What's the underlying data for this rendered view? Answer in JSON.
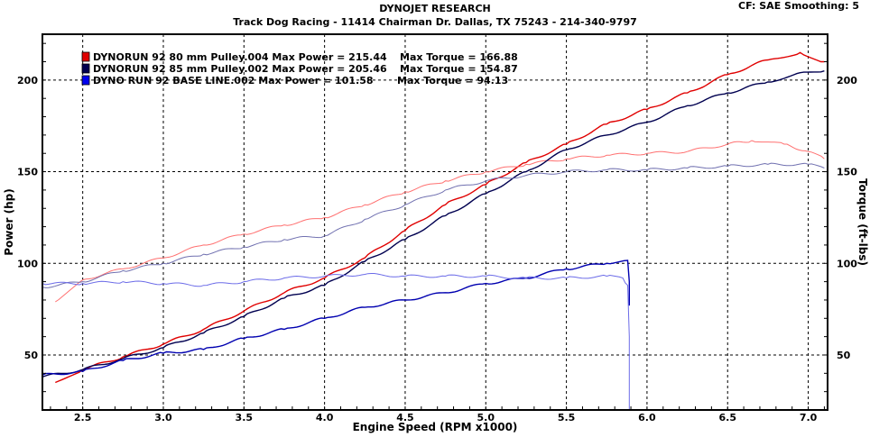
{
  "header": {
    "title": "DYNOJET RESEARCH",
    "subtitle": "Track Dog Racing - 11414 Chairman Dr. Dallas, TX 75243 - 214-340-9797",
    "cf": "CF: SAE  Smoothing: 5"
  },
  "chart_data": {
    "type": "line",
    "xlabel": "Engine Speed (RPM x1000)",
    "ylabel": "Power (hp)",
    "ylabel_right": "Torque (ft-lbs)",
    "xlim": [
      2.25,
      7.12
    ],
    "ylim": [
      20,
      225
    ],
    "xticks": [
      "2.5",
      "3.0",
      "3.5",
      "4.0",
      "4.5",
      "5.0",
      "5.5",
      "6.0",
      "6.5",
      "7.0"
    ],
    "xtick_values": [
      2.5,
      3.0,
      3.5,
      4.0,
      4.5,
      5.0,
      5.5,
      6.0,
      6.5,
      7.0
    ],
    "yticks": [
      "50",
      "100",
      "150",
      "200"
    ],
    "ytick_values": [
      50,
      100,
      150,
      200
    ],
    "grid": true,
    "legend_position": "top-left",
    "legend": [
      {
        "label": "DYNORUN 92 80 mm Pulley.004 Max Power = 215.44",
        "torque_label": "Max Torque = 166.88",
        "color": "#e00000"
      },
      {
        "label": "DYNORUN 92 85 mm Pulley.002 Max Power = 205.46",
        "torque_label": "Max Torque = 154.87",
        "color": "#000050"
      },
      {
        "label": "DYNO RUN 92 BASE LINE.002 Max Power = 101.58",
        "torque_label": "Max Torque = 94.13",
        "color": "#0000ee"
      }
    ],
    "series": [
      {
        "name": "DYNORUN 92 80 mm Pulley.004",
        "kind": "power",
        "color": "#e00000",
        "x": [
          2.33,
          2.5,
          2.75,
          3.0,
          3.25,
          3.5,
          3.75,
          4.0,
          4.25,
          4.5,
          4.75,
          5.0,
          5.25,
          5.5,
          5.75,
          6.0,
          6.25,
          6.5,
          6.75,
          6.95,
          7.1
        ],
        "y": [
          35,
          42,
          49,
          56,
          64,
          74,
          84,
          92,
          103,
          118,
          132,
          143,
          155,
          165,
          176,
          184,
          193,
          203,
          211,
          215,
          210
        ]
      },
      {
        "name": "DYNORUN 92 80 mm Pulley.004",
        "kind": "torque",
        "color": "#ff7070",
        "x": [
          2.33,
          2.5,
          2.75,
          3.0,
          3.25,
          3.5,
          3.75,
          4.0,
          4.25,
          4.5,
          4.75,
          5.0,
          5.25,
          5.5,
          5.75,
          6.0,
          6.25,
          6.5,
          6.65,
          6.85,
          7.0,
          7.1
        ],
        "y": [
          79,
          91,
          97,
          103,
          110,
          116,
          121,
          125,
          132,
          139,
          145,
          150,
          154,
          157,
          159,
          160,
          161,
          165,
          167,
          165,
          161,
          157
        ]
      },
      {
        "name": "DYNORUN 92 85 mm Pulley.002",
        "kind": "power",
        "color": "#000050",
        "x": [
          2.25,
          2.5,
          2.75,
          3.0,
          3.25,
          3.5,
          3.75,
          4.0,
          4.25,
          4.5,
          4.75,
          5.0,
          5.25,
          5.5,
          5.75,
          6.0,
          6.25,
          6.5,
          6.75,
          6.95,
          7.1
        ],
        "y": [
          38,
          42,
          48,
          54,
          62,
          71,
          81,
          88,
          101,
          113,
          126,
          138,
          150,
          162,
          170,
          177,
          186,
          193,
          199,
          204,
          205
        ]
      },
      {
        "name": "DYNORUN 92 85 mm Pulley.002",
        "kind": "torque",
        "color": "#7070b0",
        "x": [
          2.25,
          2.5,
          2.75,
          3.0,
          3.25,
          3.5,
          3.75,
          4.0,
          4.25,
          4.5,
          4.75,
          5.0,
          5.25,
          5.5,
          5.75,
          6.0,
          6.25,
          6.5,
          6.75,
          7.0,
          7.1
        ],
        "y": [
          87,
          90,
          96,
          100,
          105,
          109,
          113,
          115,
          124,
          132,
          140,
          145,
          148,
          150,
          151,
          151,
          152,
          153,
          154,
          154,
          152
        ]
      },
      {
        "name": "DYNO RUN 92 BASE LINE.002",
        "kind": "power",
        "color": "#0000b0",
        "x": [
          2.25,
          2.5,
          2.75,
          3.0,
          3.25,
          3.5,
          3.75,
          4.0,
          4.25,
          4.5,
          4.75,
          5.0,
          5.25,
          5.5,
          5.75,
          5.88,
          5.89,
          5.89
        ],
        "y": [
          39,
          41,
          47,
          51,
          53,
          59,
          64,
          70,
          76,
          80,
          84,
          89,
          92,
          97,
          100,
          101.6,
          90,
          77
        ]
      },
      {
        "name": "DYNO RUN 92 BASE LINE.002",
        "kind": "torque",
        "color": "#6b6be8",
        "x": [
          2.25,
          2.5,
          2.75,
          3.0,
          3.25,
          3.5,
          3.75,
          4.0,
          4.25,
          4.5,
          4.75,
          5.0,
          5.25,
          5.5,
          5.75,
          5.85,
          5.88,
          5.89,
          5.89
        ],
        "y": [
          89,
          89,
          90,
          89,
          88,
          90,
          92,
          93,
          94,
          93,
          93,
          93,
          92,
          92,
          93,
          92,
          88,
          60,
          20
        ]
      }
    ]
  }
}
